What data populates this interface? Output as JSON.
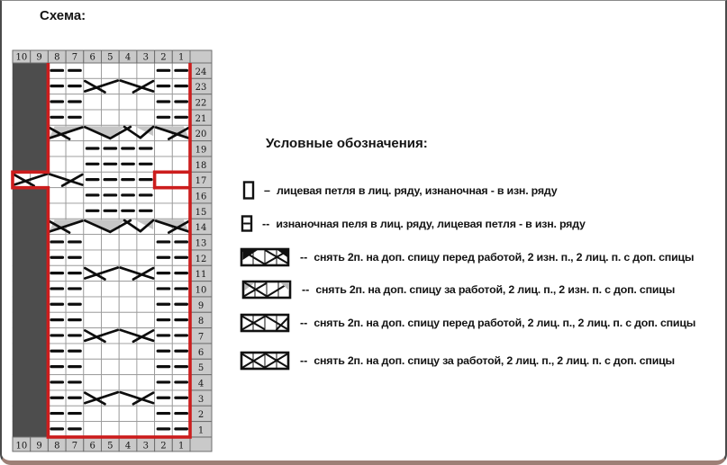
{
  "page": {
    "title": "Схема:"
  },
  "frame": {
    "border_color": "#4a4a4a",
    "bottom_bar_color": "#9d7f76"
  },
  "chart": {
    "top_header": [
      "10",
      "9",
      "8",
      "7",
      "6",
      "5",
      "4",
      "3",
      "2",
      "1",
      ""
    ],
    "bottom_header": [
      "10",
      "9",
      "8",
      "7",
      "6",
      "5",
      "4",
      "3",
      "2",
      "1",
      ""
    ],
    "row_numbers": [
      "24",
      "23",
      "22",
      "21",
      "20",
      "19",
      "18",
      "17",
      "16",
      "15",
      "14",
      "13",
      "12",
      "11",
      "10",
      "9",
      "8",
      "7",
      "6",
      "5",
      "4",
      "3",
      "2",
      "1"
    ],
    "colors": {
      "dark_block": "#4d4d4d",
      "repeat_line": "#cc1d1d",
      "cell_bg": "#ffffff",
      "grid_line": "#9a9a9a",
      "header_bg": "#c9c9c9",
      "header_line": "#6e6e6e",
      "symbol": "#0d0d0d",
      "gray_fill": "#c6c6c6",
      "number_text": "#141414"
    },
    "dark_block_columns": [
      10,
      9
    ],
    "dark_block_open_row": 17,
    "red_repeat": {
      "left_boundary_col": 8,
      "right_boundary_col": 1,
      "jog_row": 17,
      "left_jog_to_col": 10,
      "right_jog_to_col": 2
    },
    "rows": [
      {
        "num": 24,
        "dashes": [
          8,
          7,
          2,
          1
        ]
      },
      {
        "num": 23,
        "dashes": [
          8,
          7,
          2,
          1
        ],
        "cross_right": [
          [
            6,
            5
          ]
        ],
        "cross_left": [
          [
            4,
            3
          ]
        ]
      },
      {
        "num": 22,
        "dashes": [
          8,
          7,
          2,
          1
        ]
      },
      {
        "num": 21,
        "dashes": [
          8,
          7,
          2,
          1
        ]
      },
      {
        "num": 20,
        "cable_right_gray": [
          [
            8,
            7
          ]
        ],
        "wave_gray": [
          [
            6,
            3
          ]
        ],
        "cable_left_gray": [
          [
            2,
            1
          ]
        ]
      },
      {
        "num": 19,
        "dashes": [
          6,
          5,
          4,
          3
        ]
      },
      {
        "num": 18,
        "dashes": [
          6,
          5,
          4,
          3
        ]
      },
      {
        "num": 17,
        "cross_right": [
          [
            10,
            9
          ]
        ],
        "cross_left": [
          [
            8,
            7
          ]
        ],
        "dashes": [
          6,
          5,
          4,
          3
        ],
        "empty_red_cells": [
          2,
          1
        ]
      },
      {
        "num": 16,
        "dashes": [
          6,
          5,
          4,
          3
        ]
      },
      {
        "num": 15,
        "dashes": [
          6,
          5,
          4,
          3
        ]
      },
      {
        "num": 14,
        "cable_right_gray": [
          [
            8,
            7
          ]
        ],
        "wave_gray": [
          [
            6,
            3
          ]
        ],
        "cable_left_gray": [
          [
            2,
            1
          ]
        ]
      },
      {
        "num": 13,
        "dashes": [
          8,
          7,
          2,
          1
        ]
      },
      {
        "num": 12,
        "dashes": [
          8,
          7,
          2,
          1
        ]
      },
      {
        "num": 11,
        "dashes": [
          8,
          7,
          2,
          1
        ],
        "cross_right": [
          [
            6,
            5
          ]
        ],
        "cross_left": [
          [
            4,
            3
          ]
        ]
      },
      {
        "num": 10,
        "dashes": [
          8,
          7,
          2,
          1
        ]
      },
      {
        "num": 9,
        "dashes": [
          8,
          7,
          2,
          1
        ]
      },
      {
        "num": 8,
        "dashes": [
          8,
          7,
          2,
          1
        ]
      },
      {
        "num": 7,
        "dashes": [
          8,
          7,
          2,
          1
        ],
        "cross_right": [
          [
            6,
            5
          ]
        ],
        "cross_left": [
          [
            4,
            3
          ]
        ]
      },
      {
        "num": 6,
        "dashes": [
          8,
          7,
          2,
          1
        ]
      },
      {
        "num": 5,
        "dashes": [
          8,
          7,
          2,
          1
        ]
      },
      {
        "num": 4,
        "dashes": [
          8,
          7,
          2,
          1
        ]
      },
      {
        "num": 3,
        "dashes": [
          8,
          7,
          2,
          1
        ],
        "cross_right": [
          [
            6,
            5
          ]
        ],
        "cross_left": [
          [
            4,
            3
          ]
        ]
      },
      {
        "num": 2,
        "dashes": [
          8,
          7,
          2,
          1
        ]
      },
      {
        "num": 1,
        "dashes": [
          8,
          7,
          2,
          1
        ]
      }
    ]
  },
  "legend": {
    "heading": "Условные обозначения:",
    "items": [
      {
        "symbol": "empty-square",
        "sep": "–",
        "text": "лицевая петля в лиц. ряду, изнаночная - в изн. ряду"
      },
      {
        "symbol": "dash-square",
        "sep": "--",
        "text": "изнаночная пеля в лиц. ряду, лицевая петля - в изн. ряду"
      },
      {
        "symbol": "cable-front-purl-knit",
        "sep": "--",
        "text": "снять 2п. на доп. спицу перед работой, 2 изн. п., 2 лиц. п. с доп. спицы"
      },
      {
        "symbol": "cable-back-knit-purl",
        "sep": "--",
        "text": "снять 2п. на доп. спицу за работой, 2 лиц. п., 2 изн. п. с доп. спицы"
      },
      {
        "symbol": "cable-front-knit-knit",
        "sep": "--",
        "text": "снять 2п. на доп. спицу перед работой, 2 лиц. п., 2 лиц. п. с доп. спицы"
      },
      {
        "symbol": "cable-back-knit-knit",
        "sep": "--",
        "text": "снять 2п. на доп. спицу за работой, 2 лиц. п., 2 лиц. п. с доп. спицы"
      }
    ]
  }
}
